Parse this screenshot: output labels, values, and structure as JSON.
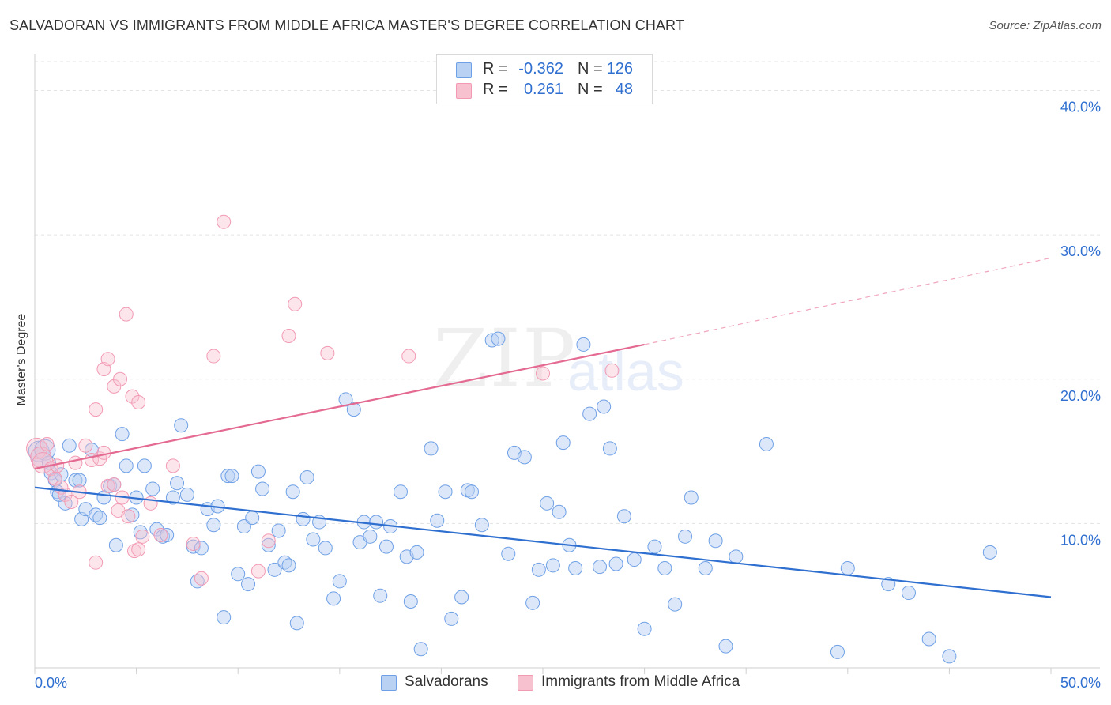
{
  "title": "SALVADORAN VS IMMIGRANTS FROM MIDDLE AFRICA MASTER'S DEGREE CORRELATION CHART",
  "source": "Source: ZipAtlas.com",
  "watermark": {
    "zip": "ZIP",
    "atlas": "atlas"
  },
  "legend_top": {
    "rows": [
      {
        "r_label": "R =",
        "r_value": "-0.362",
        "n_label": "N =",
        "n_value": "126",
        "color": "#b9d1f3"
      },
      {
        "r_label": "R =",
        "r_value": "0.261",
        "n_label": "N =",
        "n_value": "48",
        "color": "#f7c1d0"
      }
    ]
  },
  "legend_bottom": [
    {
      "label": "Salvadorans",
      "color": "#b9d1f3"
    },
    {
      "label": "Immigrants from Middle Africa",
      "color": "#f7c1d0"
    }
  ],
  "chart_data": {
    "type": "scatter",
    "title": "SALVADORAN VS IMMIGRANTS FROM MIDDLE AFRICA MASTER'S DEGREE CORRELATION CHART",
    "xlabel": "",
    "ylabel": "Master's Degree",
    "xlim": [
      0,
      50
    ],
    "ylim": [
      0,
      42
    ],
    "x_tick_labels": [
      "0.0%",
      "50.0%"
    ],
    "y_ticks": [
      10,
      20,
      30,
      40
    ],
    "y_tick_labels": [
      "10.0%",
      "20.0%",
      "30.0%",
      "40.0%"
    ],
    "grid": true,
    "legend_position": "top-center",
    "series": [
      {
        "name": "Salvadorans",
        "color": "#6fa0e6",
        "trend": {
          "x0": 0,
          "y0": 12.5,
          "x1": 50,
          "y1": 4.9,
          "dashed_from": null
        },
        "points": [
          [
            0.2,
            15.0
          ],
          [
            0.3,
            14.6
          ],
          [
            0.5,
            15.1
          ],
          [
            0.7,
            14.2
          ],
          [
            0.8,
            13.5
          ],
          [
            1.0,
            13.0
          ],
          [
            1.1,
            12.2
          ],
          [
            1.3,
            13.4
          ],
          [
            1.5,
            11.4
          ],
          [
            1.7,
            15.4
          ],
          [
            2.0,
            13.0
          ],
          [
            2.3,
            10.3
          ],
          [
            2.5,
            11.0
          ],
          [
            2.8,
            15.1
          ],
          [
            3.0,
            10.6
          ],
          [
            3.2,
            10.4
          ],
          [
            3.4,
            11.8
          ],
          [
            3.7,
            12.6
          ],
          [
            3.9,
            12.7
          ],
          [
            4.0,
            8.5
          ],
          [
            4.3,
            16.2
          ],
          [
            4.5,
            14.0
          ],
          [
            4.8,
            10.6
          ],
          [
            5.0,
            11.8
          ],
          [
            5.2,
            9.4
          ],
          [
            5.4,
            14.0
          ],
          [
            5.8,
            12.4
          ],
          [
            6.0,
            9.6
          ],
          [
            6.3,
            9.1
          ],
          [
            6.5,
            9.2
          ],
          [
            6.8,
            11.8
          ],
          [
            7.0,
            12.8
          ],
          [
            7.2,
            16.8
          ],
          [
            7.5,
            12.0
          ],
          [
            7.8,
            8.4
          ],
          [
            8.0,
            6.0
          ],
          [
            8.2,
            8.3
          ],
          [
            8.5,
            11.0
          ],
          [
            8.8,
            9.9
          ],
          [
            9.0,
            11.2
          ],
          [
            9.3,
            3.5
          ],
          [
            9.5,
            13.3
          ],
          [
            9.7,
            13.3
          ],
          [
            10.0,
            6.5
          ],
          [
            10.3,
            9.8
          ],
          [
            10.5,
            5.8
          ],
          [
            10.7,
            10.4
          ],
          [
            11.0,
            13.6
          ],
          [
            11.2,
            12.4
          ],
          [
            11.5,
            8.5
          ],
          [
            11.8,
            6.8
          ],
          [
            12.0,
            9.5
          ],
          [
            12.3,
            7.3
          ],
          [
            12.5,
            7.1
          ],
          [
            12.7,
            12.2
          ],
          [
            12.9,
            3.1
          ],
          [
            13.2,
            10.3
          ],
          [
            13.4,
            13.2
          ],
          [
            13.7,
            8.9
          ],
          [
            14.0,
            10.1
          ],
          [
            14.3,
            8.3
          ],
          [
            14.7,
            4.8
          ],
          [
            15.0,
            6.0
          ],
          [
            15.3,
            18.6
          ],
          [
            15.7,
            17.9
          ],
          [
            16.0,
            8.7
          ],
          [
            16.2,
            10.1
          ],
          [
            16.5,
            9.1
          ],
          [
            16.8,
            10.1
          ],
          [
            17.0,
            5.0
          ],
          [
            17.3,
            8.4
          ],
          [
            17.5,
            9.8
          ],
          [
            18.0,
            12.2
          ],
          [
            18.3,
            7.7
          ],
          [
            18.5,
            4.6
          ],
          [
            18.8,
            8.0
          ],
          [
            19.0,
            1.3
          ],
          [
            19.5,
            15.2
          ],
          [
            19.8,
            10.2
          ],
          [
            20.2,
            12.2
          ],
          [
            20.5,
            3.4
          ],
          [
            21.0,
            4.9
          ],
          [
            21.3,
            12.3
          ],
          [
            21.5,
            12.2
          ],
          [
            22.0,
            9.9
          ],
          [
            22.5,
            22.7
          ],
          [
            22.8,
            22.8
          ],
          [
            23.3,
            7.9
          ],
          [
            23.6,
            14.9
          ],
          [
            24.1,
            14.6
          ],
          [
            24.5,
            4.5
          ],
          [
            24.8,
            6.8
          ],
          [
            25.2,
            11.4
          ],
          [
            25.5,
            7.1
          ],
          [
            25.8,
            10.8
          ],
          [
            26.0,
            15.6
          ],
          [
            26.3,
            8.5
          ],
          [
            26.6,
            6.9
          ],
          [
            27.0,
            22.4
          ],
          [
            27.3,
            17.6
          ],
          [
            27.8,
            7.0
          ],
          [
            28.0,
            18.1
          ],
          [
            28.3,
            15.2
          ],
          [
            28.6,
            7.2
          ],
          [
            29.0,
            10.5
          ],
          [
            29.5,
            7.5
          ],
          [
            30.0,
            2.7
          ],
          [
            30.5,
            8.4
          ],
          [
            31.0,
            6.9
          ],
          [
            31.5,
            4.4
          ],
          [
            32.0,
            9.1
          ],
          [
            32.3,
            11.8
          ],
          [
            33.0,
            6.9
          ],
          [
            33.5,
            8.8
          ],
          [
            34.0,
            1.5
          ],
          [
            34.5,
            7.7
          ],
          [
            36.0,
            15.5
          ],
          [
            39.5,
            1.1
          ],
          [
            40.0,
            6.9
          ],
          [
            42.0,
            5.8
          ],
          [
            43.0,
            5.2
          ],
          [
            44.0,
            2.0
          ],
          [
            45.0,
            0.8
          ],
          [
            47.0,
            8.0
          ],
          [
            1.2,
            12.0
          ],
          [
            2.2,
            13.0
          ]
        ]
      },
      {
        "name": "Immigrants from Middle Africa",
        "color": "#f29ab4",
        "trend": {
          "x0": 0,
          "y0": 13.8,
          "x1": 30,
          "y1": 22.4,
          "dashed_to": 50,
          "dashed_y": 28.4
        },
        "points": [
          [
            0.1,
            15.2
          ],
          [
            0.3,
            14.6
          ],
          [
            0.4,
            14.2
          ],
          [
            0.6,
            15.5
          ],
          [
            0.8,
            13.8
          ],
          [
            1.0,
            13.1
          ],
          [
            1.1,
            14.0
          ],
          [
            1.3,
            12.5
          ],
          [
            1.5,
            12.0
          ],
          [
            1.8,
            11.5
          ],
          [
            2.0,
            14.2
          ],
          [
            2.2,
            12.2
          ],
          [
            2.5,
            15.4
          ],
          [
            2.8,
            14.4
          ],
          [
            3.0,
            7.3
          ],
          [
            3.2,
            14.5
          ],
          [
            3.4,
            14.9
          ],
          [
            3.6,
            12.6
          ],
          [
            3.9,
            12.7
          ],
          [
            4.1,
            10.9
          ],
          [
            4.3,
            11.8
          ],
          [
            4.6,
            10.5
          ],
          [
            4.9,
            8.1
          ],
          [
            5.1,
            8.2
          ],
          [
            5.3,
            9.1
          ],
          [
            3.0,
            17.9
          ],
          [
            3.4,
            20.7
          ],
          [
            3.6,
            21.4
          ],
          [
            3.9,
            19.5
          ],
          [
            4.2,
            20.0
          ],
          [
            4.5,
            24.5
          ],
          [
            4.8,
            18.8
          ],
          [
            5.1,
            18.4
          ],
          [
            5.7,
            11.4
          ],
          [
            6.2,
            9.2
          ],
          [
            6.8,
            14.0
          ],
          [
            7.8,
            8.6
          ],
          [
            8.2,
            6.2
          ],
          [
            8.8,
            21.6
          ],
          [
            9.3,
            30.9
          ],
          [
            11.0,
            6.7
          ],
          [
            11.5,
            8.8
          ],
          [
            12.5,
            23.0
          ],
          [
            12.8,
            25.2
          ],
          [
            14.4,
            21.8
          ],
          [
            18.4,
            21.6
          ],
          [
            25.0,
            20.4
          ],
          [
            28.4,
            20.6
          ]
        ]
      }
    ]
  }
}
